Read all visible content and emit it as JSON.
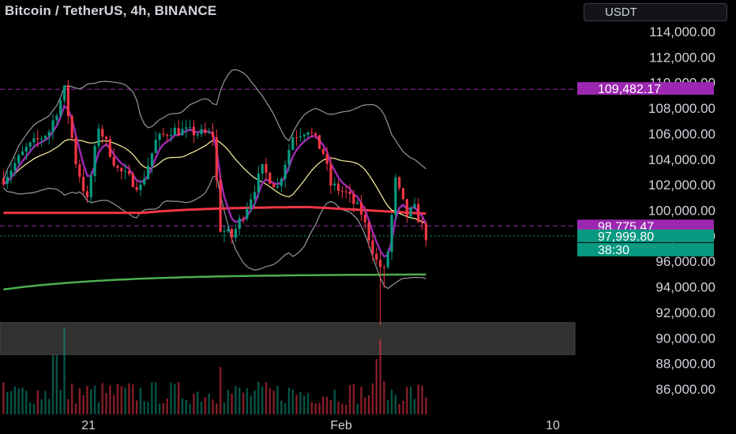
{
  "header": {
    "title": "Bitcoin / TetherUS, 4h, BINANCE",
    "currency": "USDT"
  },
  "chart_data": {
    "type": "candlestick",
    "y_ticks": [
      "114,000.00",
      "112,000.00",
      "110,000.00",
      "108,000.00",
      "106,000.00",
      "104,000.00",
      "102,000.00",
      "100,000.00",
      "98,000.00",
      "96,000.00",
      "94,000.00",
      "92,000.00",
      "90,000.00",
      "88,000.00",
      "86,000.00"
    ],
    "y_tick_values": [
      114000,
      112000,
      110000,
      108000,
      106000,
      104000,
      102000,
      100000,
      98000,
      96000,
      94000,
      92000,
      90000,
      88000,
      86000
    ],
    "x_ticks": [
      "21",
      "Feb",
      "10"
    ],
    "price_labels": [
      {
        "text": "109,482.17",
        "value": 109482.17,
        "color": "#9c27b0"
      },
      {
        "text": "98,775.47",
        "value": 98775.47,
        "color": "#9c27b0"
      },
      {
        "text": "97,999.80",
        "value": 97999.8,
        "color": "#089981"
      },
      {
        "text": "38:30",
        "value": null,
        "color": "#089981"
      }
    ],
    "horizontal_lines": [
      {
        "value": 109482.17,
        "style": "dashed",
        "color": "#9c27b0"
      },
      {
        "value": 98775.47,
        "style": "dashed",
        "color": "#9c27b0"
      },
      {
        "value": 97999.8,
        "style": "dotted",
        "color": "#089981"
      }
    ],
    "zone": {
      "from": 88700,
      "to": 91200,
      "color": "#3a3a3a"
    },
    "ylim": [
      84500,
      115800
    ],
    "grid": false,
    "colors": {
      "up": "#089981",
      "down": "#f23645",
      "ma_red": "#f23645",
      "ma_green": "#4caf50",
      "ma_purple": "#9c27b0",
      "ma_yellow": "#fff59d",
      "band": "#9598a1"
    }
  }
}
